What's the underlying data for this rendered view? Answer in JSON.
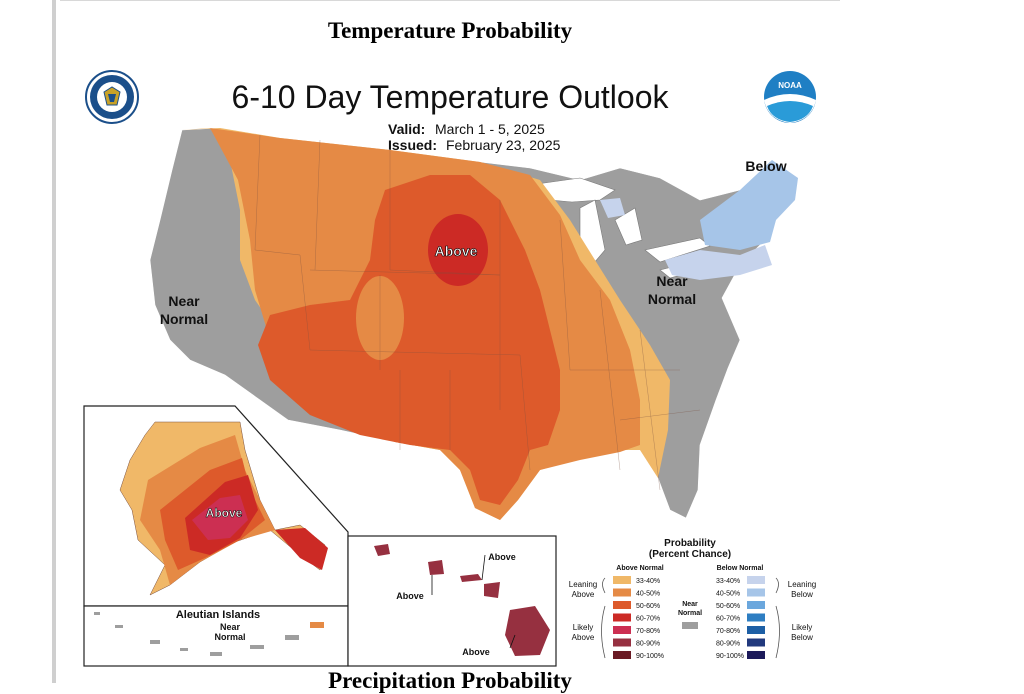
{
  "page": {
    "section_title": "Temperature Probability",
    "next_section_title": "Precipitation Probability"
  },
  "map": {
    "title": "6-10 Day Temperature Outlook",
    "valid_label": "Valid:",
    "valid_value": "March 1 - 5, 2025",
    "issued_label": "Issued:",
    "issued_value": "February 23, 2025",
    "region_labels": {
      "above_conus": "Above",
      "below_conus": "Below",
      "near_normal_west_line1": "Near",
      "near_normal_west_line2": "Normal",
      "near_normal_east_line1": "Near",
      "near_normal_east_line2": "Normal",
      "above_alaska": "Above",
      "aleutian_title": "Aleutian Islands",
      "aleutian_near_line1": "Near",
      "aleutian_near_line2": "Normal",
      "hawaii_above_1": "Above",
      "hawaii_above_2": "Above",
      "hawaii_above_3": "Above"
    },
    "logos": {
      "left": "department-of-commerce-seal",
      "right": "noaa-logo",
      "right_text": "NOAA"
    }
  },
  "legend": {
    "title_line1": "Probability",
    "title_line2": "(Percent Chance)",
    "above_header": "Above Normal",
    "below_header": "Below Normal",
    "near_normal_line1": "Near",
    "near_normal_line2": "Normal",
    "leaning_above_line1": "Leaning",
    "leaning_above_line2": "Above",
    "likely_above_line1": "Likely",
    "likely_above_line2": "Above",
    "leaning_below_line1": "Leaning",
    "leaning_below_line2": "Below",
    "likely_below_line1": "Likely",
    "likely_below_line2": "Below",
    "above_bins": [
      {
        "label": "33-40%",
        "color": "#f0b868"
      },
      {
        "label": "40-50%",
        "color": "#e58a45"
      },
      {
        "label": "50-60%",
        "color": "#dd5a2b"
      },
      {
        "label": "60-70%",
        "color": "#cc2a25"
      },
      {
        "label": "70-80%",
        "color": "#cc2f52"
      },
      {
        "label": "80-90%",
        "color": "#963040"
      },
      {
        "label": "90-100%",
        "color": "#6a1a24"
      }
    ],
    "below_bins": [
      {
        "label": "33-40%",
        "color": "#c6d3ec"
      },
      {
        "label": "40-50%",
        "color": "#a6c5e8"
      },
      {
        "label": "50-60%",
        "color": "#6ba7dd"
      },
      {
        "label": "60-70%",
        "color": "#2e7ec2"
      },
      {
        "label": "70-80%",
        "color": "#1d5fa5"
      },
      {
        "label": "80-90%",
        "color": "#21397d"
      },
      {
        "label": "90-100%",
        "color": "#1c1a5a"
      }
    ],
    "near_normal_color": "#9e9e9e"
  }
}
